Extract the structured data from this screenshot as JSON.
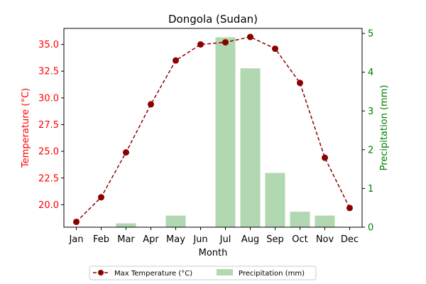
{
  "chart_data": {
    "type": "bar+line",
    "title": "Dongola (Sudan)",
    "xlabel": "Month",
    "ylabel_left": "Temperature (°C)",
    "ylabel_right": "Precipitation (mm)",
    "categories": [
      "Jan",
      "Feb",
      "Mar",
      "Apr",
      "May",
      "Jun",
      "Jul",
      "Aug",
      "Sep",
      "Oct",
      "Nov",
      "Dec"
    ],
    "ylim_left": [
      17.9,
      36.5
    ],
    "ylim_right": [
      0,
      5.13
    ],
    "yticks_left": [
      20.0,
      22.5,
      25.0,
      27.5,
      30.0,
      32.5,
      35.0
    ],
    "yticks_left_labels": [
      "20.0",
      "22.5",
      "25.0",
      "27.5",
      "30.0",
      "32.5",
      "35.0"
    ],
    "yticks_right": [
      0,
      1,
      2,
      3,
      4,
      5
    ],
    "yticks_right_labels": [
      "0",
      "1",
      "2",
      "3",
      "4",
      "5"
    ],
    "series": [
      {
        "name": "Max Temperature (°C)",
        "type": "line",
        "axis": "left",
        "color": "#8b0000",
        "style": "dashed",
        "marker": "circle",
        "values": [
          18.4,
          20.7,
          24.9,
          29.4,
          33.5,
          35.0,
          35.2,
          35.7,
          34.6,
          31.4,
          24.4,
          19.7
        ]
      },
      {
        "name": "Precipitation (mm)",
        "type": "bar",
        "axis": "right",
        "color": "#b2d8b2",
        "values": [
          0,
          0,
          0.1,
          0,
          0.3,
          0,
          4.9,
          4.1,
          1.4,
          0.4,
          0.3,
          0
        ]
      }
    ],
    "left_axis_color": "#ff0000",
    "right_axis_color": "#008000",
    "grid": false,
    "legend_position": "bottom-center"
  }
}
